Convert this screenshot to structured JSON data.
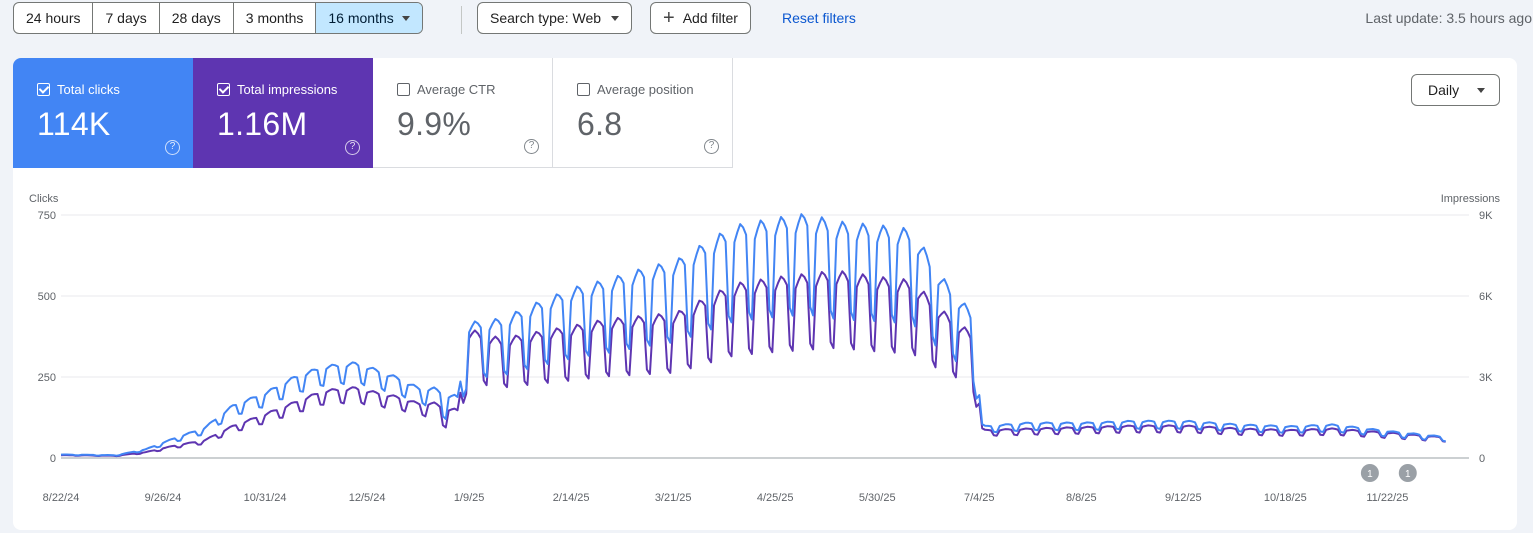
{
  "toolbar": {
    "date_ranges": [
      "24 hours",
      "7 days",
      "28 days",
      "3 months",
      "16 months"
    ],
    "active_range": "16 months",
    "search_type": "Search type: Web",
    "add_filter": "Add filter",
    "reset_filters": "Reset filters",
    "last_update": "Last update: 3.5 hours ago"
  },
  "metrics": {
    "total_clicks": {
      "label": "Total clicks",
      "value": "114K",
      "checked": true,
      "color": "#4285f4"
    },
    "total_impressions": {
      "label": "Total impressions",
      "value": "1.16M",
      "checked": true,
      "color": "#5e35b1"
    },
    "average_ctr": {
      "label": "Average CTR",
      "value": "9.9%",
      "checked": false
    },
    "average_position": {
      "label": "Average position",
      "value": "6.8",
      "checked": false
    }
  },
  "granularity": "Daily",
  "help_glyph": "?",
  "chart_data": {
    "type": "line",
    "left_axis_label": "Clicks",
    "right_axis_label": "Impressions",
    "left_ticks": [
      "750",
      "500",
      "250",
      "0"
    ],
    "right_ticks": [
      "9K",
      "6K",
      "3K",
      "0"
    ],
    "x_tick_labels": [
      "8/22/24",
      "9/26/24",
      "10/31/24",
      "12/5/24",
      "1/9/25",
      "2/14/25",
      "3/21/25",
      "4/25/25",
      "5/30/25",
      "7/4/25",
      "8/8/25",
      "9/12/25",
      "10/18/25",
      "11/22/25"
    ],
    "ylim_clicks": [
      0,
      750
    ],
    "ylim_impressions": [
      0,
      9000
    ],
    "annotations": [
      {
        "label": "1",
        "date": "2025-11-14"
      },
      {
        "label": "1",
        "date": "2025-11-27"
      }
    ],
    "series": [
      {
        "name": "Total clicks",
        "color": "#4285f4",
        "axis": "left",
        "points": [
          [
            "2024-08-22",
            10
          ],
          [
            "2024-09-10",
            8
          ],
          [
            "2024-09-20",
            25
          ],
          [
            "2024-10-01",
            60
          ],
          [
            "2024-10-10",
            85
          ],
          [
            "2024-10-20",
            150
          ],
          [
            "2024-10-31",
            185
          ],
          [
            "2024-11-10",
            230
          ],
          [
            "2024-11-20",
            260
          ],
          [
            "2024-12-01",
            270
          ],
          [
            "2024-12-05",
            260
          ],
          [
            "2024-12-15",
            230
          ],
          [
            "2024-12-25",
            190
          ],
          [
            "2025-01-05",
            160
          ],
          [
            "2025-01-09",
            350
          ],
          [
            "2025-01-20",
            360
          ],
          [
            "2025-02-01",
            400
          ],
          [
            "2025-02-14",
            440
          ],
          [
            "2025-02-25",
            460
          ],
          [
            "2025-03-10",
            490
          ],
          [
            "2025-03-21",
            510
          ],
          [
            "2025-04-01",
            560
          ],
          [
            "2025-04-10",
            600
          ],
          [
            "2025-04-25",
            620
          ],
          [
            "2025-05-05",
            630
          ],
          [
            "2025-05-15",
            610
          ],
          [
            "2025-05-30",
            600
          ],
          [
            "2025-06-10",
            590
          ],
          [
            "2025-06-20",
            470
          ],
          [
            "2025-06-30",
            380
          ],
          [
            "2025-07-02",
            260
          ],
          [
            "2025-07-04",
            90
          ],
          [
            "2025-07-20",
            100
          ],
          [
            "2025-08-08",
            100
          ],
          [
            "2025-08-25",
            105
          ],
          [
            "2025-09-12",
            105
          ],
          [
            "2025-09-30",
            95
          ],
          [
            "2025-10-18",
            90
          ],
          [
            "2025-11-01",
            95
          ],
          [
            "2025-11-22",
            75
          ],
          [
            "2025-12-10",
            60
          ]
        ]
      },
      {
        "name": "Total impressions",
        "color": "#5e35b1",
        "axis": "right",
        "points": [
          [
            "2024-08-22",
            100
          ],
          [
            "2024-09-10",
            80
          ],
          [
            "2024-09-20",
            200
          ],
          [
            "2024-10-01",
            450
          ],
          [
            "2024-10-10",
            600
          ],
          [
            "2024-10-20",
            1100
          ],
          [
            "2024-10-31",
            1500
          ],
          [
            "2024-11-10",
            1900
          ],
          [
            "2024-11-20",
            2300
          ],
          [
            "2024-12-01",
            2400
          ],
          [
            "2024-12-05",
            2300
          ],
          [
            "2024-12-15",
            2100
          ],
          [
            "2024-12-25",
            1800
          ],
          [
            "2025-01-05",
            1500
          ],
          [
            "2025-01-09",
            4000
          ],
          [
            "2025-01-20",
            3700
          ],
          [
            "2025-02-01",
            3900
          ],
          [
            "2025-02-14",
            4100
          ],
          [
            "2025-02-25",
            4300
          ],
          [
            "2025-03-10",
            4400
          ],
          [
            "2025-03-21",
            4500
          ],
          [
            "2025-04-01",
            5000
          ],
          [
            "2025-04-10",
            5400
          ],
          [
            "2025-04-25",
            5600
          ],
          [
            "2025-05-05",
            5700
          ],
          [
            "2025-05-15",
            5800
          ],
          [
            "2025-05-30",
            5600
          ],
          [
            "2025-06-10",
            5500
          ],
          [
            "2025-06-20",
            4600
          ],
          [
            "2025-06-30",
            3900
          ],
          [
            "2025-07-02",
            2700
          ],
          [
            "2025-07-04",
            950
          ],
          [
            "2025-07-20",
            1000
          ],
          [
            "2025-08-08",
            1050
          ],
          [
            "2025-08-25",
            1100
          ],
          [
            "2025-09-12",
            1100
          ],
          [
            "2025-09-30",
            1000
          ],
          [
            "2025-10-18",
            950
          ],
          [
            "2025-11-01",
            1000
          ],
          [
            "2025-11-22",
            850
          ],
          [
            "2025-12-10",
            700
          ]
        ]
      }
    ]
  }
}
